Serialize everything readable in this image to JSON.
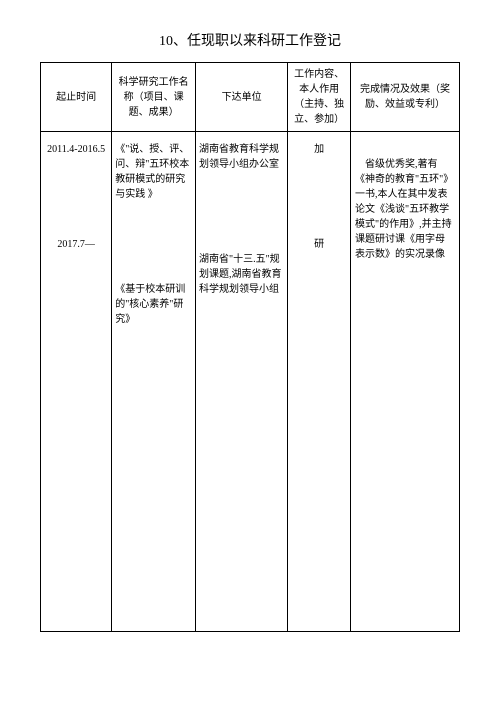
{
  "title": "10、任现职以来科研工作登记",
  "headers": {
    "time": "起止时间",
    "name": "科学研究工作名称（项目、课题、成果）",
    "unit": "下达单位",
    "role": "工作内容、本人作用（主持、独立、参加）",
    "result": "完成情况及效果（奖励、效益或专利）"
  },
  "rows": [
    {
      "time": "2011.4-2016.5",
      "name": "《\"说、授、评、问、辩\"五环校本教研模式的研究与实践 》",
      "unit": "湖南省教育科学规划领导小组办公室",
      "role": "加",
      "result": "　省级优秀奖,著有《神奇的教育\"五环\"》一书,本人在其中发表论文《浅谈\"五环教学模式\"的作用》,并主持课题研讨课《用字母表示数》的实况录像"
    },
    {
      "time": "2017.7—",
      "name": "《基于校本研训的\"核心素养\"研究》",
      "unit": "湖南省\"十三.五\"规划课题,湖南省教育科学规划领导小组",
      "role": "研",
      "result": ""
    }
  ],
  "colors": {
    "background": "#ffffff",
    "text": "#000000",
    "border": "#000000"
  }
}
